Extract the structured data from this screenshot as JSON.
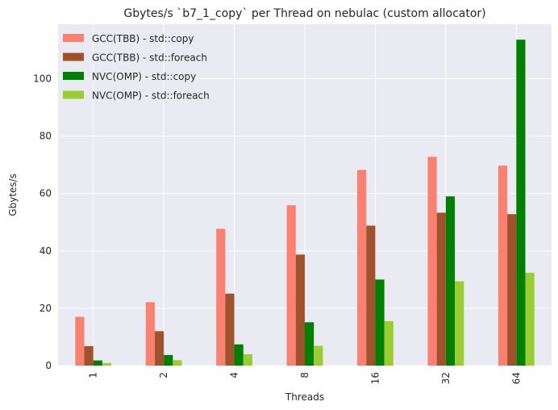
{
  "chart_data": {
    "type": "bar",
    "title": "Gbytes/s `b7_1_copy` per Thread on nebulac (custom allocator)",
    "xlabel": "Threads",
    "ylabel": "Gbytes/s",
    "categories": [
      "1",
      "2",
      "4",
      "8",
      "16",
      "32",
      "64"
    ],
    "ylim": [
      0,
      119
    ],
    "yticks": [
      0,
      20,
      40,
      60,
      80,
      100
    ],
    "grid": true,
    "legend_position": "top-left",
    "background": "#eaeaf2",
    "series": [
      {
        "name": "GCC(TBB) - std::copy",
        "color": "#fa8072",
        "values": [
          17.0,
          22.1,
          47.7,
          55.9,
          68.2,
          72.8,
          69.7
        ]
      },
      {
        "name": "GCC(TBB) - std::foreach",
        "color": "#a0522d",
        "values": [
          6.8,
          12.0,
          25.1,
          38.7,
          48.8,
          53.3,
          52.8
        ]
      },
      {
        "name": "NVC(OMP) - std::copy",
        "color": "#008000",
        "values": [
          1.8,
          3.7,
          7.4,
          15.1,
          30.0,
          59.0,
          113.6
        ]
      },
      {
        "name": "NVC(OMP) - std::foreach",
        "color": "#9acd32",
        "values": [
          0.9,
          1.9,
          4.0,
          6.9,
          15.5,
          29.4,
          32.4
        ]
      }
    ]
  }
}
